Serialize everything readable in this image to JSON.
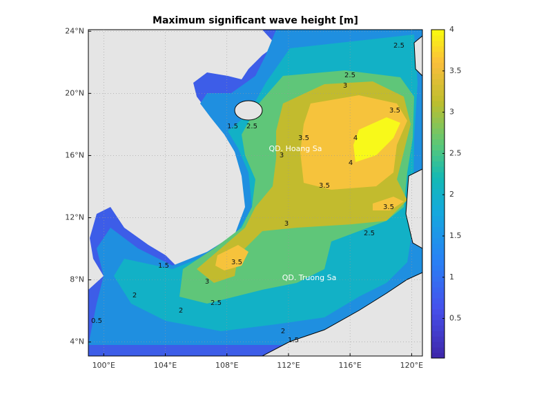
{
  "map": {
    "title": "Maximum significant wave height [m]",
    "xlim": [
      99,
      120.7
    ],
    "ylim": [
      3.1,
      24.1
    ],
    "xticks": [
      {
        "value": 100,
        "label": "100°E"
      },
      {
        "value": 104,
        "label": "104°E"
      },
      {
        "value": 108,
        "label": "108°E"
      },
      {
        "value": 112,
        "label": "112°E"
      },
      {
        "value": 116,
        "label": "116°E"
      },
      {
        "value": 120,
        "label": "120°E"
      }
    ],
    "yticks": [
      {
        "value": 4,
        "label": "4°N"
      },
      {
        "value": 8,
        "label": "8°N"
      },
      {
        "value": 12,
        "label": "12°N"
      },
      {
        "value": 16,
        "label": "16°N"
      },
      {
        "value": 20,
        "label": "20°N"
      },
      {
        "value": 24,
        "label": "24°N"
      }
    ],
    "grid": true,
    "colorbar": {
      "clim": [
        0.02,
        4
      ],
      "ticks": [
        0.5,
        1,
        1.5,
        2,
        2.5,
        3,
        3.5,
        4
      ]
    },
    "contour_labels": [
      2.5,
      3,
      3.5,
      4,
      4,
      3.5,
      3,
      3.5,
      2.5,
      3.5,
      3,
      2.5,
      2,
      2,
      1.5,
      1.5,
      2.5,
      3.5,
      3,
      2.5,
      0.5,
      1.5,
      2
    ],
    "annotations": [
      "QD. Hoang Sa",
      "QD. Truong Sa"
    ]
  }
}
